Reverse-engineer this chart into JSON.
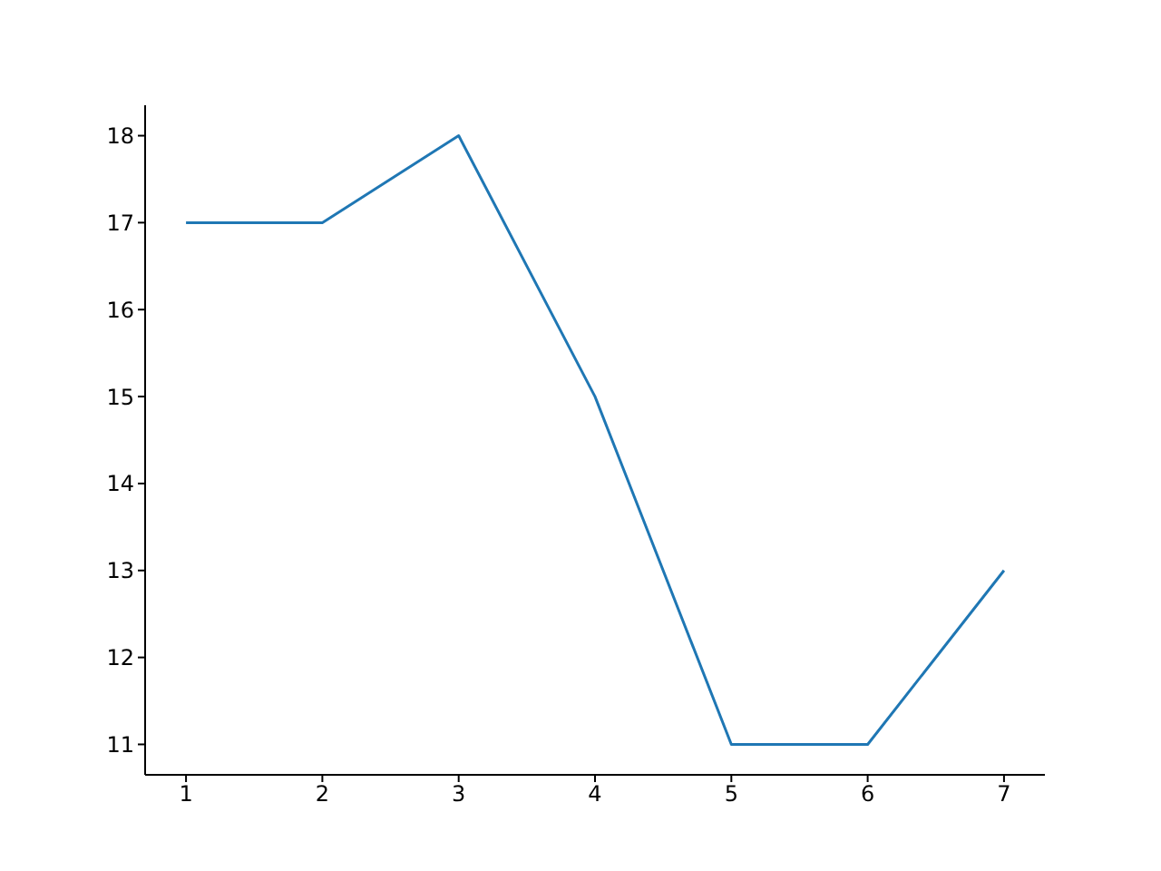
{
  "chart_data": {
    "type": "line",
    "x": [
      1,
      2,
      3,
      4,
      5,
      6,
      7
    ],
    "series": [
      {
        "color": "#1f77b4",
        "values": [
          17,
          17,
          18,
          15,
          11,
          11,
          13
        ]
      }
    ],
    "xlim": [
      0.7,
      7.3
    ],
    "xticks": [
      1,
      2,
      3,
      4,
      5,
      6,
      7
    ],
    "ylim": [
      10.65,
      18.35
    ],
    "yticks": [
      11,
      12,
      13,
      14,
      15,
      16,
      17,
      18
    ],
    "marker": "none",
    "line_style": "solid"
  }
}
